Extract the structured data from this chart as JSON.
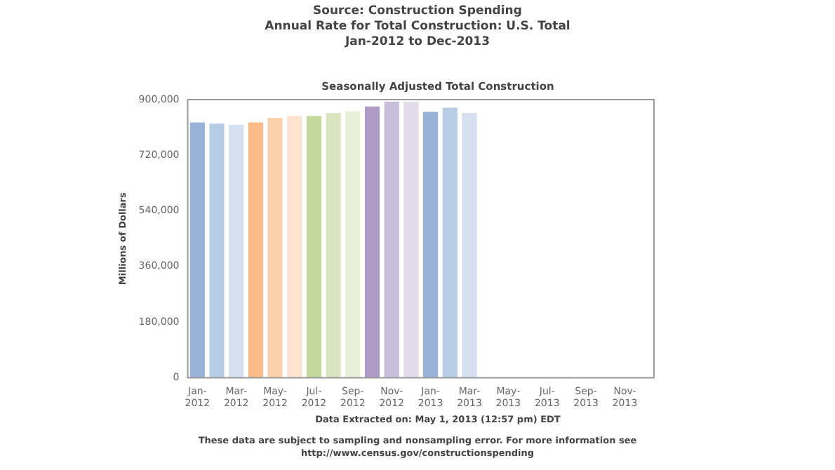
{
  "chart_data": {
    "type": "bar",
    "title": "Source: Construction Spending\nAnnual Rate for Total Construction: U.S. Total\nJan-2012 to Dec-2013",
    "subtitle": "Seasonally Adjusted Total Construction",
    "ylabel": "Millions of Dollars",
    "categories": [
      "Jan-2012",
      null,
      "Mar-2012",
      null,
      "May-2012",
      null,
      "Jul-2012",
      null,
      "Sep-2012",
      null,
      "Nov-2012",
      null,
      "Jan-2013",
      null,
      "Mar-2013",
      null,
      "May-2013",
      null,
      "Jul-2013",
      null,
      "Sep-2013",
      null,
      "Nov-2013",
      null
    ],
    "values": [
      826000,
      822000,
      818000,
      826000,
      841000,
      847000,
      847000,
      857000,
      863000,
      878000,
      893000,
      893000,
      860000,
      874000,
      857000,
      null,
      null,
      null,
      null,
      null,
      null,
      null,
      null,
      null
    ],
    "colors": [
      "#98b3d8",
      "#b7cce6",
      "#d6e0f0",
      "#f9bb88",
      "#fbcfaa",
      "#fde3d0",
      "#c3d89c",
      "#d8e5bf",
      "#e8efda",
      "#ae9cc7",
      "#c9bddc",
      "#e1dbea",
      "#98b3d8",
      "#b7cce6",
      "#d6e0f0",
      "#98b3d8",
      "#b7cce6",
      "#d6e0f0",
      "#f9bb88",
      "#fbcfaa",
      "#fde3d0",
      "#c3d89c",
      "#d8e5bf",
      "#e8efda"
    ],
    "ylim": [
      0,
      900000
    ],
    "yticks": [
      0,
      {
        "value": 180000,
        "label": "180,000"
      },
      {
        "value": 360000,
        "label": "360,000"
      },
      {
        "value": 540000,
        "label": "540,000"
      },
      {
        "value": 720000,
        "label": "720,000"
      },
      {
        "value": 900000,
        "label": "900,000"
      }
    ],
    "grid": false,
    "legend": false,
    "annotations": [
      "Data Extracted on: May 1, 2013 (12:57 pm) EDT",
      "These data are subject to sampling and nonsampling error. For more information see\nhttp://www.census.gov/constructionspending"
    ]
  }
}
